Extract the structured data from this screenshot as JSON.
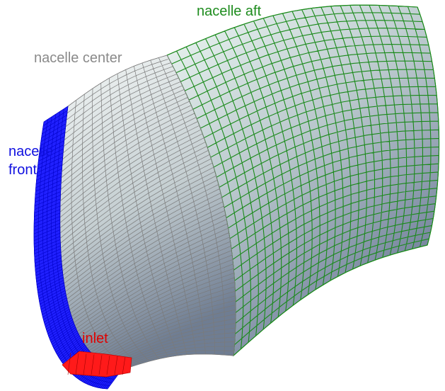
{
  "labels": {
    "aft": "nacelle aft",
    "center": "nacelle center",
    "front": [
      "nacelle",
      "front"
    ],
    "inlet": "inlet"
  }
}
